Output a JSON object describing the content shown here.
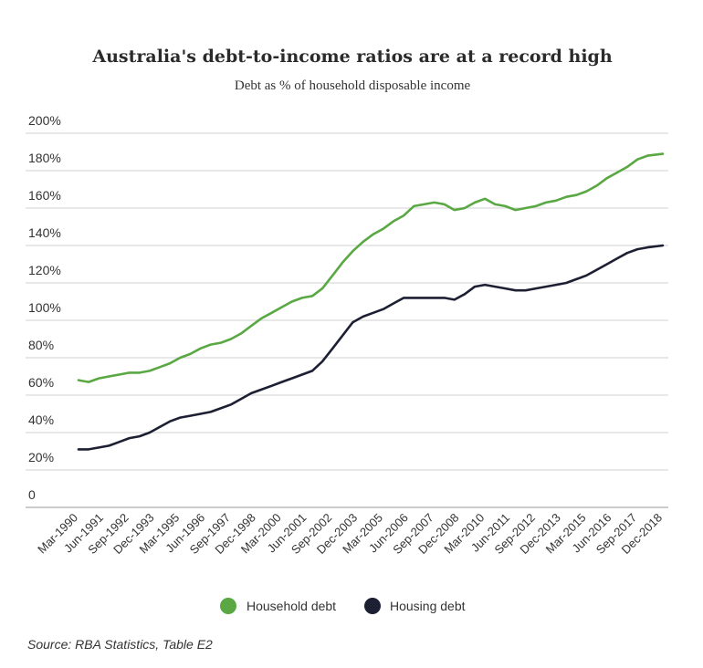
{
  "chart_data": {
    "type": "line",
    "title": "Australia's debt-to-income ratios are at a record high",
    "subtitle": "Debt as % of household disposable income",
    "source": "Source: RBA Statistics, Table E2",
    "ylim": [
      0,
      200
    ],
    "ytick_labels": [
      "0",
      "20%",
      "40%",
      "60%",
      "80%",
      "100%",
      "120%",
      "140%",
      "160%",
      "180%",
      "200%"
    ],
    "grid": true,
    "legend_position": "bottom",
    "x_tick_labels": [
      "Mar-1990",
      "Jun-1991",
      "Sep-1992",
      "Dec-1993",
      "Mar-1995",
      "Jun-1996",
      "Sep-1997",
      "Dec-1998",
      "Mar-2000",
      "Jun-2001",
      "Sep-2002",
      "Dec-2003",
      "Mar-2005",
      "Jun-2006",
      "Sep-2007",
      "Dec-2008",
      "Mar-2010",
      "Jun-2011",
      "Sep-2012",
      "Dec-2013",
      "Mar-2015",
      "Jun-2016",
      "Sep-2017",
      "Dec-2018"
    ],
    "x": [
      1990.0,
      1990.5,
      1991.0,
      1991.5,
      1992.0,
      1992.5,
      1993.0,
      1993.5,
      1994.0,
      1994.5,
      1995.0,
      1995.5,
      1996.0,
      1996.5,
      1997.0,
      1997.5,
      1998.0,
      1998.5,
      1999.0,
      1999.5,
      2000.0,
      2000.5,
      2001.0,
      2001.5,
      2002.0,
      2002.5,
      2003.0,
      2003.5,
      2004.0,
      2004.5,
      2005.0,
      2005.5,
      2006.0,
      2006.5,
      2007.0,
      2007.5,
      2008.0,
      2008.5,
      2009.0,
      2009.5,
      2010.0,
      2010.5,
      2011.0,
      2011.5,
      2012.0,
      2012.5,
      2013.0,
      2013.5,
      2014.0,
      2014.5,
      2015.0,
      2015.5,
      2016.0,
      2016.5,
      2017.0,
      2017.5,
      2018.0,
      2018.75
    ],
    "series": [
      {
        "name": "Household debt",
        "color": "#5aa843",
        "values": [
          68,
          67,
          69,
          70,
          71,
          72,
          72,
          73,
          75,
          77,
          80,
          82,
          85,
          87,
          88,
          90,
          93,
          97,
          101,
          104,
          107,
          110,
          112,
          113,
          117,
          124,
          131,
          137,
          142,
          146,
          149,
          153,
          156,
          161,
          162,
          163,
          162,
          159,
          160,
          163,
          165,
          162,
          161,
          159,
          160,
          161,
          163,
          164,
          166,
          167,
          169,
          172,
          176,
          179,
          182,
          186,
          188,
          189
        ]
      },
      {
        "name": "Housing debt",
        "color": "#1d1f33",
        "values": [
          31,
          31,
          32,
          33,
          35,
          37,
          38,
          40,
          43,
          46,
          48,
          49,
          50,
          51,
          53,
          55,
          58,
          61,
          63,
          65,
          67,
          69,
          71,
          73,
          78,
          85,
          92,
          99,
          102,
          104,
          106,
          109,
          112,
          112,
          112,
          112,
          112,
          111,
          114,
          118,
          119,
          118,
          117,
          116,
          116,
          117,
          118,
          119,
          120,
          122,
          124,
          127,
          130,
          133,
          136,
          138,
          139,
          140
        ]
      }
    ]
  }
}
